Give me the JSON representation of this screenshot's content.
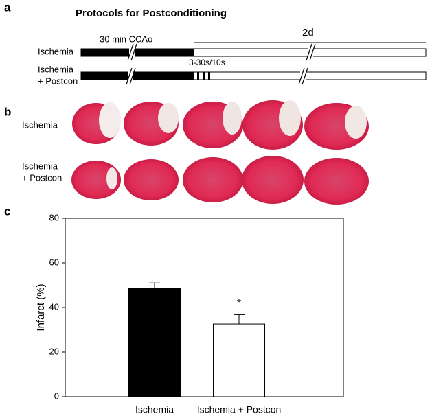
{
  "panel_a": {
    "label": "a",
    "title": "Protocols for Postconditioning",
    "ischemia_duration": "30 min CCAo",
    "total_duration": "2d",
    "postcon_protocol": "3-30s/10s",
    "row_1": [
      "Ischemia"
    ],
    "row_2": [
      "Ischemia",
      "+ Postcon"
    ]
  },
  "panel_b": {
    "label": "b",
    "row_1": [
      "Ischemia"
    ],
    "row_2": [
      "Ischemia",
      "+ Postcon"
    ]
  },
  "panel_c": {
    "label": "c"
  },
  "chart_data": {
    "type": "bar",
    "ylabel": "Infarct (%)",
    "categories": [
      "Ischemia",
      "Ischemia + Postcon"
    ],
    "values": [
      48.7,
      32.6
    ],
    "errors": [
      2.3,
      4.2
    ],
    "colors": [
      "#000000",
      "#ffffff"
    ],
    "annotation": "*",
    "ylim": [
      0,
      80
    ],
    "yticks": [
      0,
      20,
      40,
      60,
      80
    ]
  }
}
